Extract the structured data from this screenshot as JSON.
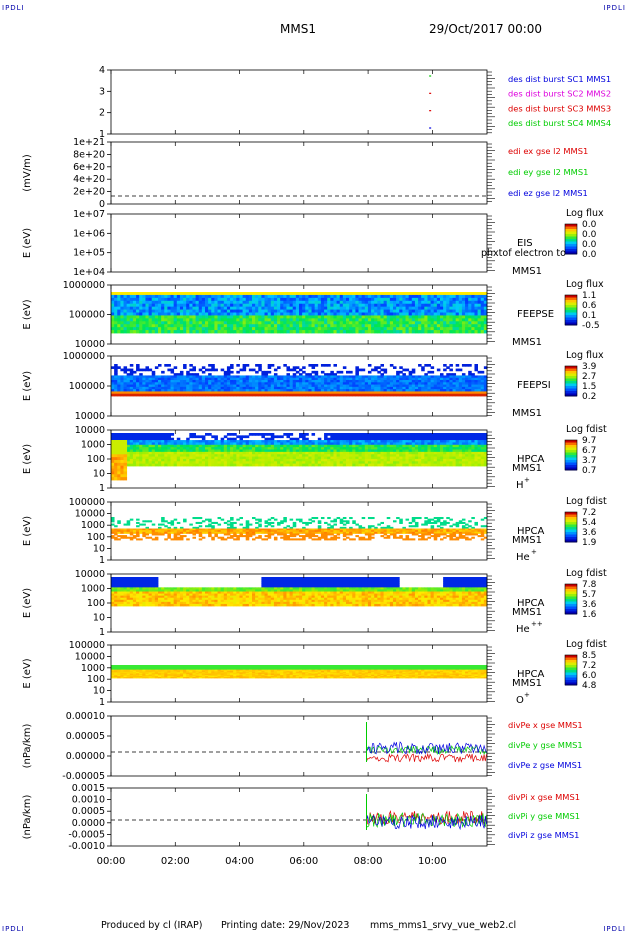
{
  "corner": {
    "tl": "IPDLI",
    "tr": "IPDLI",
    "bl": "IPDLI",
    "br": "IPDLI"
  },
  "header": {
    "title": "MMS1",
    "date": "29/Oct/2017 00:00"
  },
  "footer": {
    "produced": "Produced by cl (IRAP)",
    "printing": "Printing date: 29/Nov/2023",
    "file": "mms_mms1_srvy_vue_web2.cl"
  },
  "colors": {
    "mms1": "#0000dd",
    "mms2": "#dd00dd",
    "mms3": "#dd0000",
    "mms4": "#00cc00",
    "x": "#dd0000",
    "y": "#00cc00",
    "z": "#0000dd"
  },
  "chart_data": {
    "type": "multi-panel",
    "time_axis": {
      "ticks": [
        "00:00",
        "02:00",
        "04:00",
        "06:00",
        "08:00",
        "10:00"
      ],
      "range_hours": [
        0,
        11.7
      ]
    },
    "panels": [
      {
        "id": "burst",
        "type": "scatter",
        "yticks": [
          "4",
          "3",
          "2",
          "1"
        ],
        "legend": [
          "des dist burst SC1 MMS1",
          "des dist burst SC2 MMS2",
          "des dist burst SC3 MMS3",
          "des dist burst SC4 MMS4"
        ],
        "markers": [
          {
            "hour": 9.9,
            "sc": 4
          },
          {
            "hour": 9.9,
            "sc": 3
          },
          {
            "hour": 9.9,
            "sc": 2
          },
          {
            "hour": 9.9,
            "sc": 1
          }
        ]
      },
      {
        "id": "edi",
        "type": "line",
        "ylabel": "(mV/m)",
        "yticks": [
          "1e+21",
          "8e+20",
          "6e+20",
          "4e+20",
          "2e+20",
          "0"
        ],
        "legend": [
          "edi ex gse l2 MMS1",
          "edi ey gse l2 MMS1",
          "edi ez gse l2 MMS1"
        ]
      },
      {
        "id": "eis",
        "type": "heatmap",
        "ylabel": "E (eV)",
        "yticks": [
          "1e+07",
          "1e+06",
          "1e+05",
          "1e+04"
        ],
        "labels": [
          "EIS",
          "MMS1"
        ],
        "overlay": "phxtof electron to",
        "colorbar": {
          "title": "Log flux",
          "ticks": [
            "0.0",
            "0.0",
            "0.0",
            "0.0"
          ]
        }
      },
      {
        "id": "feepse",
        "type": "heatmap",
        "ylabel": "E (eV)",
        "yticks": [
          "1000000",
          "100000",
          "10000"
        ],
        "labels": [
          "FEEPSE",
          "MMS1"
        ],
        "colorbar": {
          "title": "Log flux",
          "ticks": [
            "1.1",
            "0.6",
            "0.1",
            "-0.5"
          ]
        }
      },
      {
        "id": "feepsi",
        "type": "heatmap",
        "ylabel": "E (eV)",
        "yticks": [
          "1000000",
          "100000",
          "10000"
        ],
        "labels": [
          "FEEPSI",
          "MMS1"
        ],
        "colorbar": {
          "title": "Log flux",
          "ticks": [
            "3.9",
            "2.7",
            "1.5",
            "0.2"
          ]
        }
      },
      {
        "id": "hpca-h",
        "type": "heatmap",
        "ylabel": "E (eV)",
        "yticks": [
          "10000",
          "1000",
          "100",
          "10",
          "1"
        ],
        "labels": [
          "HPCA",
          "MMS1"
        ],
        "species": "H",
        "charge": "+",
        "colorbar": {
          "title": "Log fdist",
          "ticks": [
            "9.7",
            "6.7",
            "3.7",
            "0.7"
          ]
        }
      },
      {
        "id": "hpca-he",
        "type": "heatmap",
        "ylabel": "E (eV)",
        "yticks": [
          "100000",
          "10000",
          "1000",
          "100",
          "10",
          "1"
        ],
        "labels": [
          "HPCA",
          "MMS1"
        ],
        "species": "He",
        "charge": "+",
        "colorbar": {
          "title": "Log fdist",
          "ticks": [
            "7.2",
            "5.4",
            "3.6",
            "1.9"
          ]
        }
      },
      {
        "id": "hpca-hepp",
        "type": "heatmap",
        "ylabel": "E (eV)",
        "yticks": [
          "10000",
          "1000",
          "100",
          "10",
          "1"
        ],
        "labels": [
          "HPCA",
          "MMS1"
        ],
        "species": "He",
        "charge": "++",
        "colorbar": {
          "title": "Log fdist",
          "ticks": [
            "7.8",
            "5.7",
            "3.6",
            "1.6"
          ]
        }
      },
      {
        "id": "hpca-o",
        "type": "heatmap",
        "ylabel": "E (eV)",
        "yticks": [
          "100000",
          "10000",
          "1000",
          "100",
          "10",
          "1"
        ],
        "labels": [
          "HPCA",
          "MMS1"
        ],
        "species": "O",
        "charge": "+",
        "colorbar": {
          "title": "Log fdist",
          "ticks": [
            "8.5",
            "7.2",
            "6.0",
            "4.8"
          ]
        }
      },
      {
        "id": "divpe",
        "type": "line",
        "ylabel": "(nPa/km)",
        "yticks": [
          "0.00010",
          "0.00005",
          "0.00000",
          "-0.00005"
        ],
        "legend": [
          "divPe x gse MMS1",
          "divPe y gse MMS1",
          "divPe z gse MMS1"
        ],
        "data_start_hour": 7.95
      },
      {
        "id": "divpi",
        "type": "line",
        "ylabel": "(nPa/km)",
        "yticks": [
          "0.0015",
          "0.0010",
          "0.0005",
          "0.0000",
          "-0.0005",
          "-0.0010"
        ],
        "legend": [
          "divPi x gse MMS1",
          "divPi y gse MMS1",
          "divPi z gse MMS1"
        ],
        "data_start_hour": 7.95
      }
    ]
  }
}
